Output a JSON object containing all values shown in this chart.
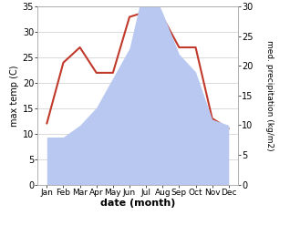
{
  "months": [
    "Jan",
    "Feb",
    "Mar",
    "Apr",
    "May",
    "Jun",
    "Jul",
    "Aug",
    "Sep",
    "Oct",
    "Nov",
    "Dec"
  ],
  "temperature": [
    12,
    24,
    27,
    22,
    22,
    33,
    34,
    33,
    27,
    27,
    13,
    11
  ],
  "precipitation": [
    8,
    8,
    10,
    13,
    18,
    23,
    35,
    29,
    22,
    19,
    11,
    10
  ],
  "temp_color": "#c0392b",
  "precip_color": "#b8c8f0",
  "left_ylim": [
    0,
    35
  ],
  "right_ylim": [
    0,
    30
  ],
  "left_yticks": [
    0,
    5,
    10,
    15,
    20,
    25,
    30,
    35
  ],
  "right_yticks": [
    0,
    5,
    10,
    15,
    20,
    25,
    30
  ],
  "xlabel": "date (month)",
  "ylabel_left": "max temp (C)",
  "ylabel_right": "med. precipitation (kg/m2)",
  "background_color": "#ffffff",
  "grid_color": "#cccccc"
}
